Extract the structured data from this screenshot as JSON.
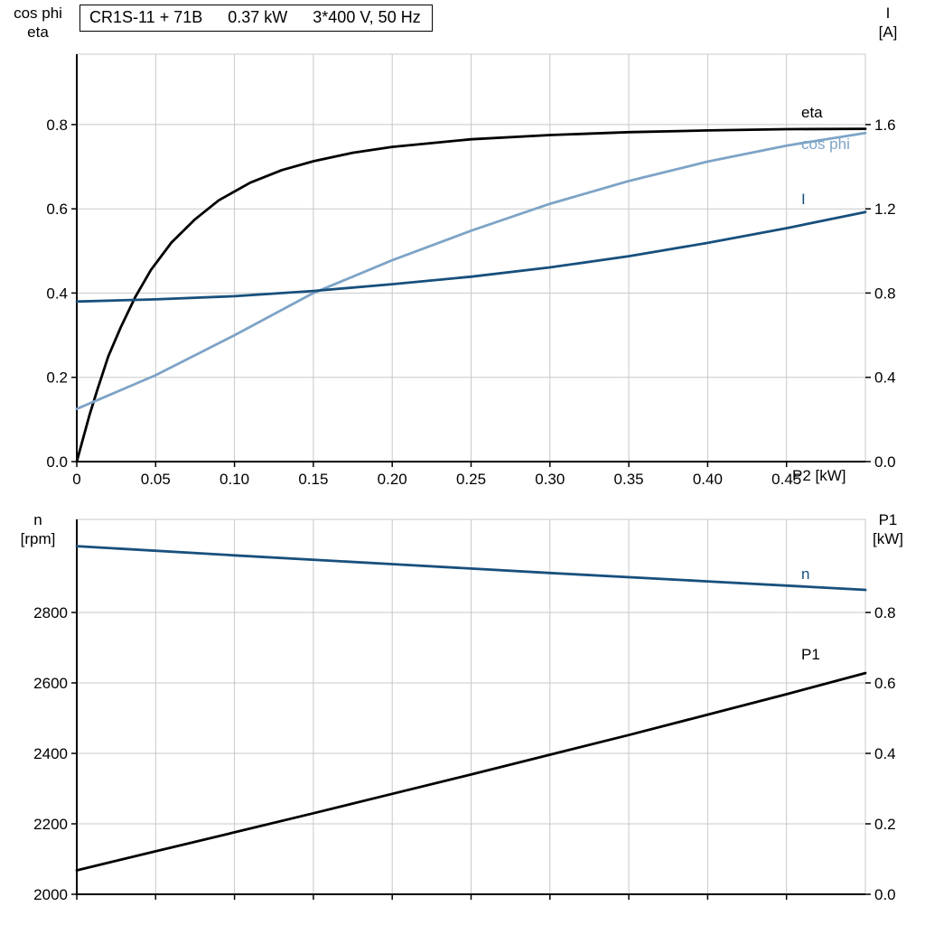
{
  "header": {
    "model": "CR1S-11 + 71B",
    "power": "0.37 kW",
    "supply": "3*400 V, 50 Hz"
  },
  "colors": {
    "black": "#000000",
    "light_blue": "#7da4c6",
    "dark_blue": "#174f7d",
    "grid": "#c8c8c8"
  },
  "chart_data": [
    {
      "type": "line",
      "title": "CR1S-11 + 71B  0.37 kW  3*400 V, 50 Hz",
      "xlabel": "P2 [kW]",
      "xlim": [
        0,
        0.5
      ],
      "xticks": [
        0,
        0.05,
        0.1,
        0.15,
        0.2,
        0.25,
        0.3,
        0.35,
        0.4,
        0.45
      ],
      "xtick_labels": [
        "0",
        "0.05",
        "0.10",
        "0.15",
        "0.20",
        "0.25",
        "0.30",
        "0.35",
        "0.40",
        "0.45"
      ],
      "grid": true,
      "legend_position": "right-inline",
      "left_axis": {
        "line1": "cos phi",
        "line2": "eta",
        "lim": [
          0,
          0.967
        ],
        "ticks": [
          0,
          0.2,
          0.4,
          0.6,
          0.8
        ],
        "tick_labels": [
          "0.0",
          "0.2",
          "0.4",
          "0.6",
          "0.8"
        ]
      },
      "right_axis": {
        "line1": "I",
        "line2": "[A]",
        "lim": [
          0,
          1.934
        ],
        "ticks": [
          0,
          0.4,
          0.8,
          1.2,
          1.6
        ],
        "tick_labels": [
          "0.0",
          "0.4",
          "0.8",
          "1.2",
          "1.6"
        ]
      },
      "series": [
        {
          "name": "eta",
          "axis": "left",
          "color": "#000000",
          "x": [
            0,
            0.004,
            0.008,
            0.013,
            0.02,
            0.028,
            0.037,
            0.047,
            0.06,
            0.075,
            0.09,
            0.11,
            0.13,
            0.15,
            0.175,
            0.2,
            0.25,
            0.3,
            0.35,
            0.4,
            0.45,
            0.5
          ],
          "y": [
            0,
            0.055,
            0.11,
            0.17,
            0.25,
            0.32,
            0.39,
            0.455,
            0.52,
            0.575,
            0.62,
            0.662,
            0.692,
            0.713,
            0.733,
            0.747,
            0.765,
            0.775,
            0.782,
            0.786,
            0.789,
            0.79
          ]
        },
        {
          "name": "cos phi",
          "axis": "left",
          "color": "#7da4c6",
          "x": [
            0,
            0.05,
            0.1,
            0.15,
            0.2,
            0.25,
            0.3,
            0.35,
            0.4,
            0.45,
            0.5
          ],
          "y": [
            0.125,
            0.205,
            0.3,
            0.4,
            0.478,
            0.548,
            0.612,
            0.666,
            0.712,
            0.75,
            0.78
          ]
        },
        {
          "name": "I",
          "axis": "right",
          "color": "#174f7d",
          "x": [
            0,
            0.05,
            0.1,
            0.15,
            0.2,
            0.25,
            0.3,
            0.35,
            0.4,
            0.45,
            0.5
          ],
          "y": [
            0.76,
            0.77,
            0.785,
            0.81,
            0.842,
            0.878,
            0.922,
            0.975,
            1.038,
            1.108,
            1.185
          ]
        }
      ]
    },
    {
      "type": "line",
      "title": "",
      "xlabel": "",
      "xlim": [
        0,
        0.5
      ],
      "xticks": [
        0,
        0.05,
        0.1,
        0.15,
        0.2,
        0.25,
        0.3,
        0.35,
        0.4,
        0.45
      ],
      "xtick_labels": [],
      "grid": true,
      "legend_position": "right-inline",
      "left_axis": {
        "line1": "n",
        "line2": "[rpm]",
        "lim": [
          2000,
          3064
        ],
        "ticks": [
          2000,
          2200,
          2400,
          2600,
          2800
        ],
        "tick_labels": [
          "2000",
          "2200",
          "2400",
          "2600",
          "2800"
        ]
      },
      "right_axis": {
        "line1": "P1",
        "line2": "[kW]",
        "lim": [
          0,
          1.064
        ],
        "ticks": [
          0,
          0.2,
          0.4,
          0.6,
          0.8
        ],
        "tick_labels": [
          "0.0",
          "0.2",
          "0.4",
          "0.6",
          "0.8"
        ]
      },
      "series": [
        {
          "name": "n",
          "axis": "left",
          "color": "#174f7d",
          "x": [
            0,
            0.1,
            0.2,
            0.3,
            0.4,
            0.5
          ],
          "y": [
            2988,
            2962,
            2937,
            2912,
            2888,
            2864
          ]
        },
        {
          "name": "P1",
          "axis": "right",
          "color": "#000000",
          "x": [
            0,
            0.05,
            0.1,
            0.15,
            0.2,
            0.25,
            0.3,
            0.35,
            0.4,
            0.45,
            0.5
          ],
          "y": [
            0.068,
            0.122,
            0.176,
            0.23,
            0.285,
            0.34,
            0.396,
            0.452,
            0.51,
            0.568,
            0.628
          ]
        }
      ]
    }
  ]
}
